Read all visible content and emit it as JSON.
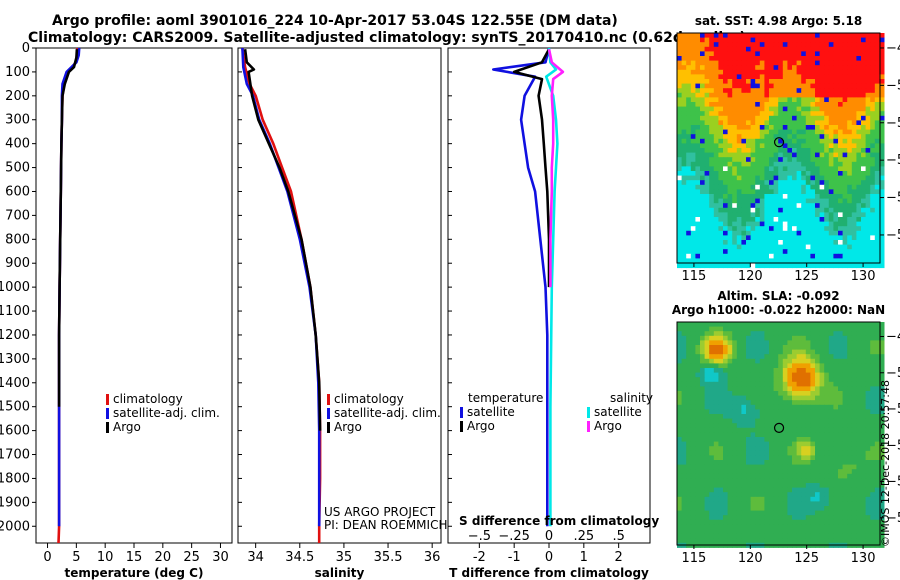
{
  "title_line1": "Argo profile: aoml 3901016_224 10-Apr-2017 53.04S 122.55E (DM data)",
  "title_line2": "Climatology: CARS2009. Satellite-adjusted climatology: synTS_20170410.nc (0.62d earlier)",
  "credit": [
    "US ARGO PROJECT",
    "PI: DEAN ROEMMICH"
  ],
  "imos_stamp": "©IMOS 12-Dec-2018 20:57:48",
  "colors": {
    "climatology": "#e01010",
    "satellite": "#1010e0",
    "argo": "#000000",
    "sat_salinity": "#00e8e8",
    "argo_salinity": "#ff20ff"
  },
  "chart_data": [
    {
      "id": "temperature",
      "type": "line",
      "xlabel": "temperature (deg C)",
      "ylabel": "pressure",
      "xlim": [
        -2,
        32
      ],
      "ylim": [
        2070,
        0
      ],
      "xticks": [
        0,
        5,
        10,
        15,
        20,
        25,
        30
      ],
      "yticks": [
        0,
        100,
        200,
        300,
        400,
        500,
        600,
        700,
        800,
        900,
        1000,
        1100,
        1200,
        1300,
        1400,
        1500,
        1600,
        1700,
        1800,
        1900,
        2000
      ],
      "legend": [
        "climatology",
        "satellite-adj. clim.",
        "Argo"
      ],
      "series": [
        {
          "name": "climatology",
          "color": "#e01010",
          "x": [
            5.2,
            5.1,
            4.9,
            3.6,
            2.9,
            2.6,
            2.5,
            2.4,
            2.3,
            2.2,
            2.1,
            2.0,
            2.0,
            2.0,
            2.0,
            1.9
          ],
          "y": [
            0,
            30,
            60,
            100,
            150,
            200,
            300,
            400,
            600,
            800,
            1000,
            1200,
            1500,
            1800,
            2000,
            2070
          ]
        },
        {
          "name": "satellite-adj. clim.",
          "color": "#1010e0",
          "x": [
            5.5,
            5.4,
            5.0,
            3.3,
            2.6,
            2.5,
            2.5,
            2.4,
            2.3,
            2.2,
            2.1,
            2.0,
            2.0,
            2.0,
            2.0
          ],
          "y": [
            0,
            30,
            60,
            100,
            150,
            200,
            300,
            400,
            600,
            800,
            1000,
            1200,
            1500,
            1800,
            2000
          ]
        },
        {
          "name": "Argo",
          "color": "#000000",
          "x": [
            5.1,
            5.0,
            4.6,
            3.7,
            3.0,
            2.6,
            2.5,
            2.4,
            2.3,
            2.2,
            2.1,
            2.0,
            2.0
          ],
          "y": [
            5,
            40,
            80,
            100,
            150,
            200,
            300,
            400,
            600,
            800,
            1000,
            1200,
            1500
          ]
        }
      ]
    },
    {
      "id": "salinity",
      "type": "line",
      "xlabel": "salinity",
      "ylabel": "pressure",
      "xlim": [
        33.8,
        36.1
      ],
      "ylim": [
        2070,
        0
      ],
      "xticks": [
        34,
        34.5,
        35,
        35.5,
        36
      ],
      "legend": [
        "climatology",
        "satellite-adj. clim.",
        "Argo"
      ],
      "series": [
        {
          "name": "climatology",
          "color": "#e01010",
          "x": [
            33.85,
            33.88,
            33.93,
            34.0,
            34.08,
            34.2,
            34.3,
            34.4,
            34.52,
            34.62,
            34.68,
            34.72,
            34.73,
            34.73,
            34.72,
            34.72
          ],
          "y": [
            0,
            80,
            150,
            200,
            300,
            400,
            500,
            600,
            800,
            1000,
            1200,
            1400,
            1600,
            1800,
            2000,
            2070
          ]
        },
        {
          "name": "satellite-adj. clim.",
          "color": "#1010e0",
          "x": [
            33.85,
            33.86,
            33.9,
            33.97,
            34.04,
            34.16,
            34.26,
            34.36,
            34.5,
            34.61,
            34.68,
            34.71,
            34.72,
            34.72,
            34.72
          ],
          "y": [
            0,
            80,
            150,
            200,
            300,
            400,
            500,
            600,
            800,
            1000,
            1200,
            1400,
            1600,
            1800,
            2000
          ]
        },
        {
          "name": "Argo",
          "color": "#000000",
          "x": [
            33.88,
            33.9,
            33.98,
            33.92,
            33.96,
            34.03,
            34.15,
            34.27,
            34.37,
            34.52,
            34.62,
            34.68,
            34.72,
            34.73
          ],
          "y": [
            5,
            60,
            90,
            100,
            200,
            300,
            400,
            500,
            600,
            800,
            1000,
            1200,
            1400,
            1600
          ]
        }
      ]
    },
    {
      "id": "difference",
      "type": "line",
      "xlabel": "T difference from climatology",
      "xlabel_top": "S difference from climatology",
      "xlim": [
        -2.9,
        2.9
      ],
      "ylim": [
        2070,
        0
      ],
      "xticks": [
        -2,
        -1,
        0,
        1,
        2
      ],
      "xticks_s": [
        -0.5,
        -0.25,
        0,
        0.25,
        0.5
      ],
      "s_scale": 4,
      "legend_temperature_title": "temperature",
      "legend_salinity_title": "salinity",
      "legend": [
        "satellite",
        "Argo"
      ],
      "series": [
        {
          "name": "T satellite",
          "color": "#1010e0",
          "x": [
            0.0,
            -0.1,
            -1.6,
            -0.4,
            -0.7,
            -0.8,
            -0.7,
            -0.6,
            -0.4,
            -0.25,
            -0.1,
            -0.05,
            -0.05,
            -0.05
          ],
          "y": [
            0,
            60,
            90,
            120,
            200,
            300,
            400,
            500,
            600,
            800,
            1000,
            1200,
            1500,
            2000
          ]
        },
        {
          "name": "T Argo",
          "color": "#000000",
          "x": [
            0.0,
            -0.2,
            -1.0,
            -0.2,
            -0.3,
            -0.2,
            -0.15,
            -0.1,
            -0.05,
            0.0,
            0.0
          ],
          "y": [
            5,
            60,
            100,
            130,
            200,
            300,
            400,
            500,
            600,
            800,
            1000
          ]
        },
        {
          "name": "S satellite",
          "color": "#00e8e8",
          "x": [
            0.0,
            0.01,
            0.05,
            -0.02,
            0.03,
            0.05,
            0.06,
            0.05,
            0.04,
            0.03,
            0.02,
            0.01,
            0.01
          ],
          "y": [
            0,
            60,
            90,
            120,
            200,
            300,
            400,
            500,
            600,
            800,
            1000,
            1500,
            2000
          ]
        },
        {
          "name": "S Argo",
          "color": "#ff20ff",
          "x": [
            0.0,
            0.02,
            0.1,
            0.03,
            0.02,
            0.03,
            0.03,
            0.02,
            0.02,
            0.01,
            0.01
          ],
          "y": [
            5,
            60,
            100,
            130,
            200,
            300,
            400,
            500,
            600,
            800,
            1000
          ]
        }
      ]
    },
    {
      "id": "sst_map",
      "type": "heatmap",
      "title": "sat. SST: 4.98 Argo: 5.18",
      "xticks": [
        115,
        120,
        125,
        130
      ],
      "yticks": [
        -48,
        -50,
        -52,
        -54,
        -56,
        -58
      ],
      "xlim": [
        113.5,
        131.5
      ],
      "ylim": [
        -59.5,
        -47.2
      ],
      "float_position": {
        "lon": 122.55,
        "lat": -53.04
      }
    },
    {
      "id": "sla_map",
      "type": "heatmap",
      "title_line1": "Altim. SLA: -0.092",
      "title_line2": "Argo h1000: -0.022 h2000: NaN",
      "xticks": [
        115,
        120,
        125,
        130
      ],
      "yticks": [
        -48,
        -50,
        -52,
        -54,
        -56,
        -58
      ],
      "xlim": [
        113.5,
        131.5
      ],
      "ylim": [
        -59.5,
        -47.2
      ],
      "float_position": {
        "lon": 122.55,
        "lat": -53.04
      }
    }
  ]
}
